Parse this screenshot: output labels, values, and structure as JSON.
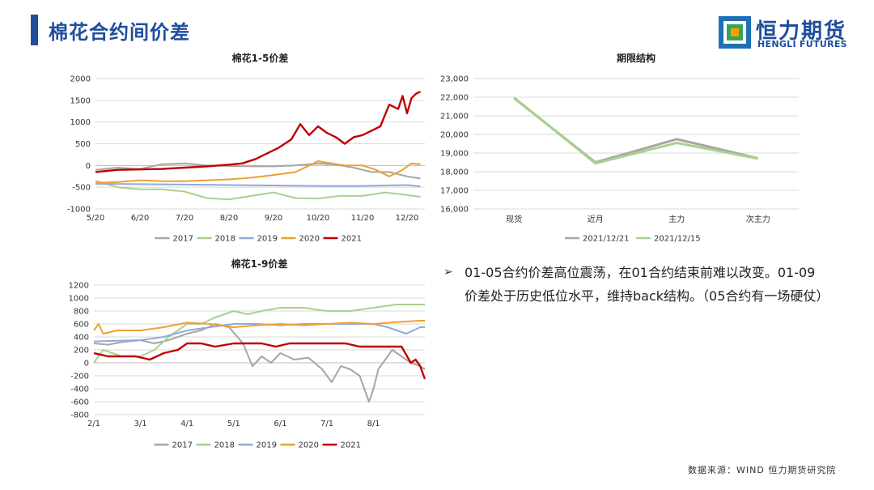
{
  "header": {
    "title": "棉花合约间价差",
    "logo_cn": "恒力期货",
    "logo_en": "HENGLI FUTURES"
  },
  "colors": {
    "accent": "#1f4e9c",
    "s2017": "#a6a6a6",
    "s2018": "#a9d18e",
    "s2019": "#8faadc",
    "s2020": "#f4b183",
    "s2020_line": "#f0a030",
    "s2021": "#c00000",
    "t1221": "#a6a6a6",
    "t1215": "#a9d18e"
  },
  "commentary": {
    "bullet": "➢",
    "text": "01-05合约价差高位震荡，在01合约结束前难以改变。01-09价差处于历史低位水平，维持back结构。（05合约有一场硬仗）"
  },
  "source": "数据来源：WIND 恒力期货研究院",
  "chart_data": [
    {
      "type": "line",
      "title": "棉花1-5价差",
      "xlabel": "",
      "ylabel": "",
      "ylim": [
        -1000,
        2000
      ],
      "yticks": [
        -1000,
        -500,
        0,
        500,
        1000,
        1500,
        2000
      ],
      "xticks": [
        "5/20",
        "6/20",
        "7/20",
        "8/20",
        "9/20",
        "10/20",
        "11/20",
        "12/20"
      ],
      "xlim": [
        0,
        7.4
      ],
      "grid": true,
      "legend_position": "bottom",
      "series": [
        {
          "name": "2017",
          "x": [
            0,
            0.5,
            1,
            1.5,
            2,
            2.5,
            3,
            3.5,
            4,
            4.5,
            5,
            5.4,
            5.8,
            6.2,
            6.6,
            7,
            7.3
          ],
          "y": [
            -100,
            -50,
            -80,
            30,
            50,
            0,
            -10,
            -20,
            -20,
            0,
            50,
            20,
            -50,
            -150,
            -150,
            -250,
            -300
          ]
        },
        {
          "name": "2018",
          "x": [
            0,
            0.5,
            1,
            1.5,
            2,
            2.5,
            3,
            3.5,
            4,
            4.5,
            5,
            5.5,
            6,
            6.5,
            7,
            7.3
          ],
          "y": [
            -350,
            -500,
            -550,
            -550,
            -600,
            -750,
            -780,
            -700,
            -620,
            -750,
            -760,
            -700,
            -700,
            -620,
            -680,
            -720
          ]
        },
        {
          "name": "2019",
          "x": [
            0,
            1,
            2,
            3,
            4,
            5,
            6,
            6.5,
            7,
            7.3
          ],
          "y": [
            -420,
            -430,
            -440,
            -450,
            -460,
            -470,
            -470,
            -460,
            -450,
            -480
          ]
        },
        {
          "name": "2020",
          "x": [
            0,
            0.5,
            1,
            1.5,
            2,
            2.5,
            3,
            3.5,
            4,
            4.5,
            5,
            5.3,
            5.6,
            6,
            6.3,
            6.6,
            6.9,
            7.1,
            7.3
          ],
          "y": [
            -400,
            -380,
            -340,
            -360,
            -360,
            -340,
            -320,
            -280,
            -220,
            -150,
            100,
            50,
            0,
            0,
            -100,
            -250,
            -100,
            50,
            30
          ]
        },
        {
          "name": "2021",
          "x": [
            0,
            0.5,
            1,
            1.5,
            2,
            2.5,
            3,
            3.3,
            3.6,
            3.9,
            4.1,
            4.4,
            4.6,
            4.8,
            5,
            5.2,
            5.4,
            5.6,
            5.8,
            6.0,
            6.2,
            6.4,
            6.6,
            6.8,
            6.9,
            7.0,
            7.1,
            7.2,
            7.3
          ],
          "y": [
            -150,
            -100,
            -90,
            -80,
            -50,
            -20,
            20,
            50,
            150,
            300,
            400,
            600,
            950,
            700,
            900,
            750,
            650,
            500,
            650,
            700,
            800,
            900,
            1400,
            1300,
            1600,
            1200,
            1550,
            1650,
            1700
          ]
        }
      ]
    },
    {
      "type": "line",
      "title": "期限结构",
      "xlabel": "",
      "ylabel": "",
      "ylim": [
        16000,
        23000
      ],
      "yticks": [
        16000,
        17000,
        18000,
        19000,
        20000,
        21000,
        22000,
        23000
      ],
      "ytick_labels": [
        "16,000",
        "17,000",
        "18,000",
        "19,000",
        "20,000",
        "21,000",
        "22,000",
        "23,000"
      ],
      "categories": [
        "现货",
        "近月",
        "主力",
        "次主力"
      ],
      "grid": true,
      "legend_position": "bottom",
      "series": [
        {
          "name": "2021/12/21",
          "values": [
            21950,
            18500,
            19750,
            18720
          ]
        },
        {
          "name": "2021/12/15",
          "values": [
            21980,
            18450,
            19550,
            18700
          ]
        }
      ]
    },
    {
      "type": "line",
      "title": "棉花1-9价差",
      "xlabel": "",
      "ylabel": "",
      "ylim": [
        -800,
        1200
      ],
      "yticks": [
        -800,
        -600,
        -400,
        -200,
        0,
        200,
        400,
        600,
        800,
        1000,
        1200
      ],
      "xticks": [
        "2/1",
        "3/1",
        "4/1",
        "5/1",
        "6/1",
        "7/1",
        "8/1"
      ],
      "xlim": [
        0,
        7.1
      ],
      "grid": true,
      "legend_position": "bottom",
      "series": [
        {
          "name": "2017",
          "x": [
            0,
            0.3,
            0.6,
            1,
            1.3,
            1.6,
            2,
            2.3,
            2.6,
            2.9,
            3.2,
            3.4,
            3.6,
            3.8,
            4,
            4.3,
            4.6,
            4.9,
            5.1,
            5.3,
            5.5,
            5.7,
            5.9,
            6,
            6.1,
            6.2,
            6.4,
            6.6,
            6.8,
            7.0,
            7.1
          ],
          "y": [
            300,
            280,
            320,
            350,
            300,
            350,
            450,
            500,
            600,
            550,
            300,
            -50,
            100,
            0,
            150,
            50,
            80,
            -100,
            -300,
            -50,
            -100,
            -200,
            -600,
            -400,
            -100,
            0,
            200,
            100,
            0,
            -50,
            -100
          ]
        },
        {
          "name": "2018",
          "x": [
            0,
            0.2,
            0.4,
            0.6,
            1,
            1.3,
            1.6,
            2,
            2.3,
            2.6,
            3,
            3.3,
            3.6,
            4,
            4.5,
            5,
            5.5,
            6,
            6.5,
            7,
            7.1
          ],
          "y": [
            0,
            200,
            150,
            100,
            100,
            200,
            400,
            600,
            600,
            700,
            800,
            750,
            800,
            850,
            850,
            800,
            800,
            850,
            900,
            900,
            900
          ]
        },
        {
          "name": "2019",
          "x": [
            0,
            0.5,
            1,
            1.5,
            2,
            2.5,
            3,
            3.5,
            4,
            4.5,
            5,
            5.5,
            6,
            6.3,
            6.5,
            6.7,
            7,
            7.1
          ],
          "y": [
            330,
            340,
            350,
            400,
            500,
            550,
            600,
            600,
            580,
            600,
            600,
            600,
            600,
            550,
            500,
            450,
            550,
            550
          ]
        },
        {
          "name": "2020",
          "x": [
            0,
            0.1,
            0.2,
            0.5,
            1,
            1.5,
            2,
            2.5,
            3,
            3.5,
            4,
            4.5,
            5,
            5.5,
            6,
            6.5,
            7,
            7.1
          ],
          "y": [
            500,
            600,
            450,
            500,
            500,
            550,
            620,
            600,
            550,
            580,
            600,
            580,
            600,
            620,
            600,
            630,
            650,
            650
          ]
        },
        {
          "name": "2021",
          "x": [
            0,
            0.3,
            0.6,
            0.9,
            1.2,
            1.5,
            1.8,
            2.0,
            2.3,
            2.6,
            3,
            3.3,
            3.6,
            3.9,
            4.2,
            4.5,
            4.8,
            5.1,
            5.4,
            5.7,
            6,
            6.2,
            6.4,
            6.6,
            6.8,
            6.9,
            7.0,
            7.1
          ],
          "y": [
            150,
            100,
            100,
            100,
            50,
            150,
            200,
            300,
            300,
            250,
            300,
            300,
            300,
            250,
            300,
            300,
            300,
            300,
            300,
            250,
            250,
            250,
            250,
            250,
            0,
            50,
            -50,
            -250
          ]
        }
      ]
    }
  ]
}
